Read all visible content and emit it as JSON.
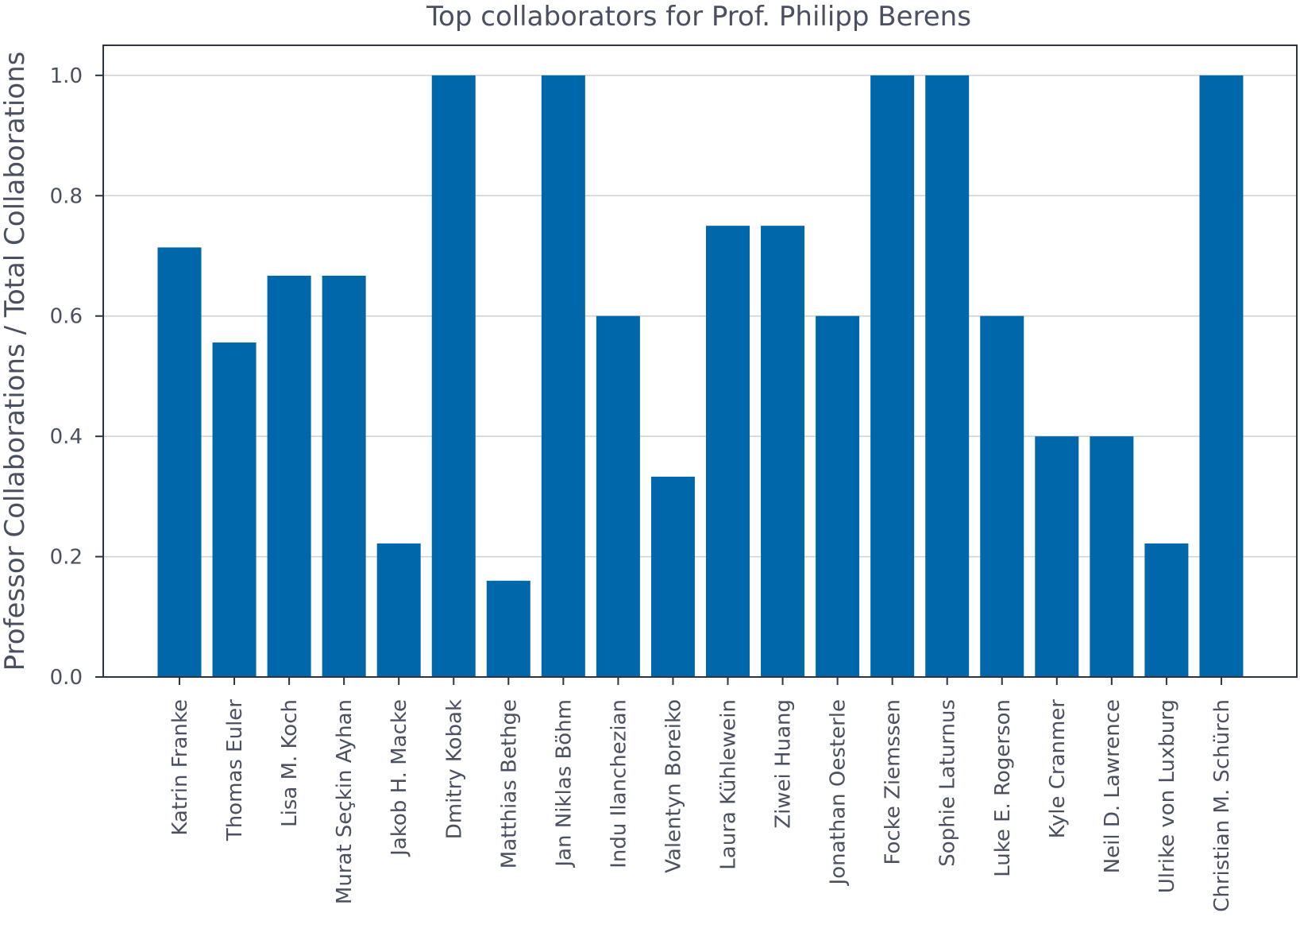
{
  "chart_data": {
    "type": "bar",
    "title": "Top collaborators for Prof. Philipp Berens",
    "xlabel": "",
    "ylabel": "Professor Collaborations / Total Collaborations",
    "ylim": [
      0,
      1.05
    ],
    "yticks": [
      "0.0",
      "0.2",
      "0.4",
      "0.6",
      "0.8",
      "1.0"
    ],
    "grid": "horizontal",
    "bar_color": "#0068aa",
    "categories": [
      "Katrin Franke",
      "Thomas Euler",
      "Lisa M. Koch",
      "Murat Seçkin Ayhan",
      "Jakob H. Macke",
      "Dmitry Kobak",
      "Matthias Bethge",
      "Jan Niklas Böhm",
      "Indu Ilanchezian",
      "Valentyn Boreiko",
      "Laura Kühlewein",
      "Ziwei Huang",
      "Jonathan Oesterle",
      "Focke Ziemssen",
      "Sophie Laturnus",
      "Luke E. Rogerson",
      "Kyle Cranmer",
      "Neil D. Lawrence",
      "Ulrike von Luxburg",
      "Christian M. Schürch"
    ],
    "values": [
      0.714,
      0.556,
      0.667,
      0.667,
      0.222,
      1.0,
      0.16,
      1.0,
      0.6,
      0.333,
      0.75,
      0.75,
      0.6,
      1.0,
      1.0,
      0.6,
      0.4,
      0.4,
      0.222,
      1.0
    ]
  }
}
